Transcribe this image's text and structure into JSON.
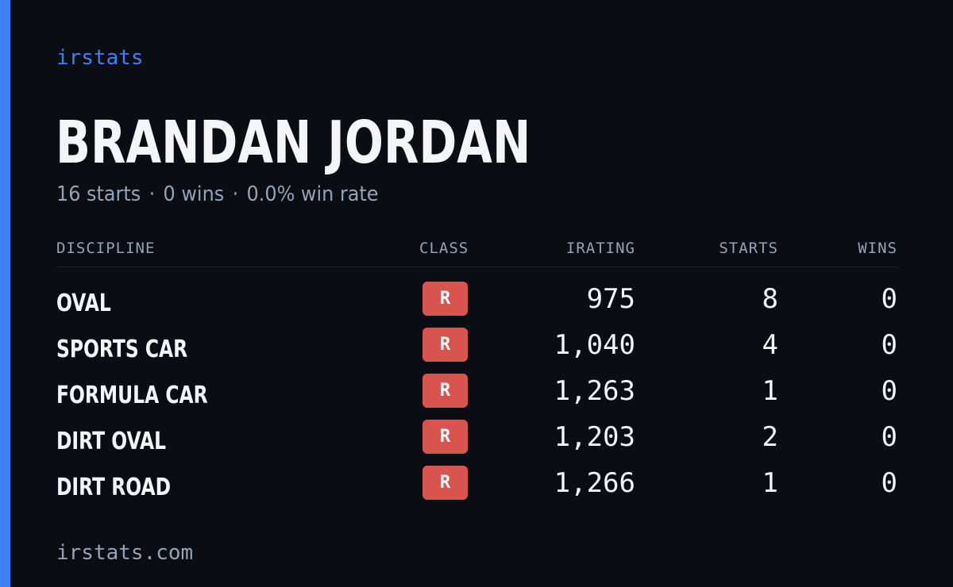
{
  "brand": "irstats",
  "driver": {
    "name": "BRANDAN JORDAN"
  },
  "summary": {
    "starts": "16 starts",
    "wins": "0 wins",
    "win_rate": "0.0% win rate",
    "separator": "·"
  },
  "table": {
    "headers": {
      "discipline": "DISCIPLINE",
      "class": "CLASS",
      "irating": "IRATING",
      "starts": "STARTS",
      "wins": "WINS"
    },
    "rows": [
      {
        "discipline": "OVAL",
        "class": "R",
        "irating": "975",
        "starts": "8",
        "wins": "0"
      },
      {
        "discipline": "SPORTS CAR",
        "class": "R",
        "irating": "1,040",
        "starts": "4",
        "wins": "0"
      },
      {
        "discipline": "FORMULA CAR",
        "class": "R",
        "irating": "1,263",
        "starts": "1",
        "wins": "0"
      },
      {
        "discipline": "DIRT OVAL",
        "class": "R",
        "irating": "1,203",
        "starts": "2",
        "wins": "0"
      },
      {
        "discipline": "DIRT ROAD",
        "class": "R",
        "irating": "1,266",
        "starts": "1",
        "wins": "0"
      }
    ]
  },
  "footer": {
    "url": "irstats.com"
  },
  "colors": {
    "background": "#0a0d14",
    "accent": "#3b82f6",
    "class_r_badge": "#d9534f",
    "text_primary": "#f3f5f9",
    "text_muted": "#94a3b8"
  }
}
